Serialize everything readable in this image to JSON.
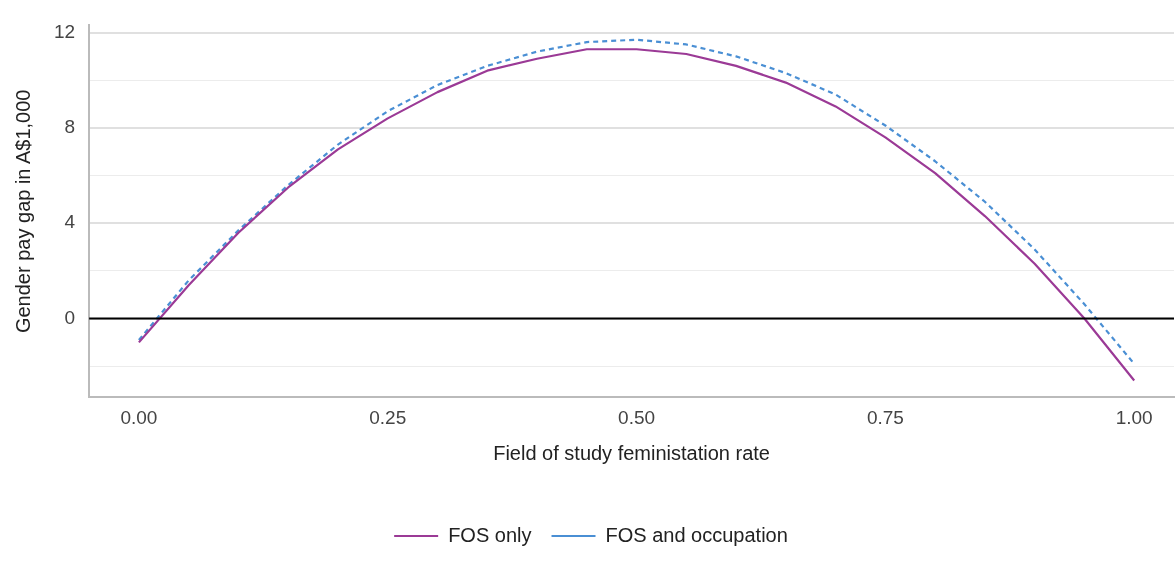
{
  "chart_data": {
    "type": "line",
    "xlabel": "Field of study feministation rate",
    "ylabel": "Gender pay gap in A$1,000",
    "x": [
      0,
      0.05,
      0.1,
      0.15,
      0.2,
      0.25,
      0.3,
      0.35,
      0.4,
      0.45,
      0.5,
      0.55,
      0.6,
      0.65,
      0.7,
      0.75,
      0.8,
      0.85,
      0.9,
      0.95,
      1
    ],
    "series": [
      {
        "name": "FOS only",
        "color": "#9b3a96",
        "line_style": "solid",
        "values": [
          -1.0,
          1.4,
          3.6,
          5.5,
          7.1,
          8.4,
          9.5,
          10.4,
          10.9,
          11.3,
          11.3,
          11.1,
          10.6,
          9.9,
          8.9,
          7.6,
          6.1,
          4.3,
          2.3,
          0.0,
          -2.6
        ]
      },
      {
        "name": "FOS and occupation",
        "color": "#4a8fd4",
        "line_style": "dashed",
        "values": [
          -0.9,
          1.6,
          3.7,
          5.6,
          7.3,
          8.7,
          9.8,
          10.6,
          11.2,
          11.6,
          11.7,
          11.5,
          11.0,
          10.3,
          9.4,
          8.1,
          6.6,
          4.9,
          2.9,
          0.6,
          -1.9
        ]
      }
    ],
    "xlim": [
      -0.05,
      1.04
    ],
    "xticks": [
      {
        "value": 0,
        "label": "0.00"
      },
      {
        "value": 0.25,
        "label": "0.25"
      },
      {
        "value": 0.5,
        "label": "0.50"
      },
      {
        "value": 0.75,
        "label": "0.75"
      },
      {
        "value": 1,
        "label": "1.00"
      }
    ],
    "ylim": [
      -3.3,
      12.3
    ],
    "yticks": [
      {
        "value": -2,
        "label": null
      },
      0,
      {
        "value": 2,
        "label": null
      },
      4,
      {
        "value": 6,
        "label": null
      },
      8,
      {
        "value": 10,
        "label": null
      },
      12
    ],
    "ref_lines": [
      {
        "axis": "y",
        "value": 0,
        "color": "#000000"
      }
    ],
    "grid": "y",
    "legend": "bottom",
    "marker": "none"
  }
}
